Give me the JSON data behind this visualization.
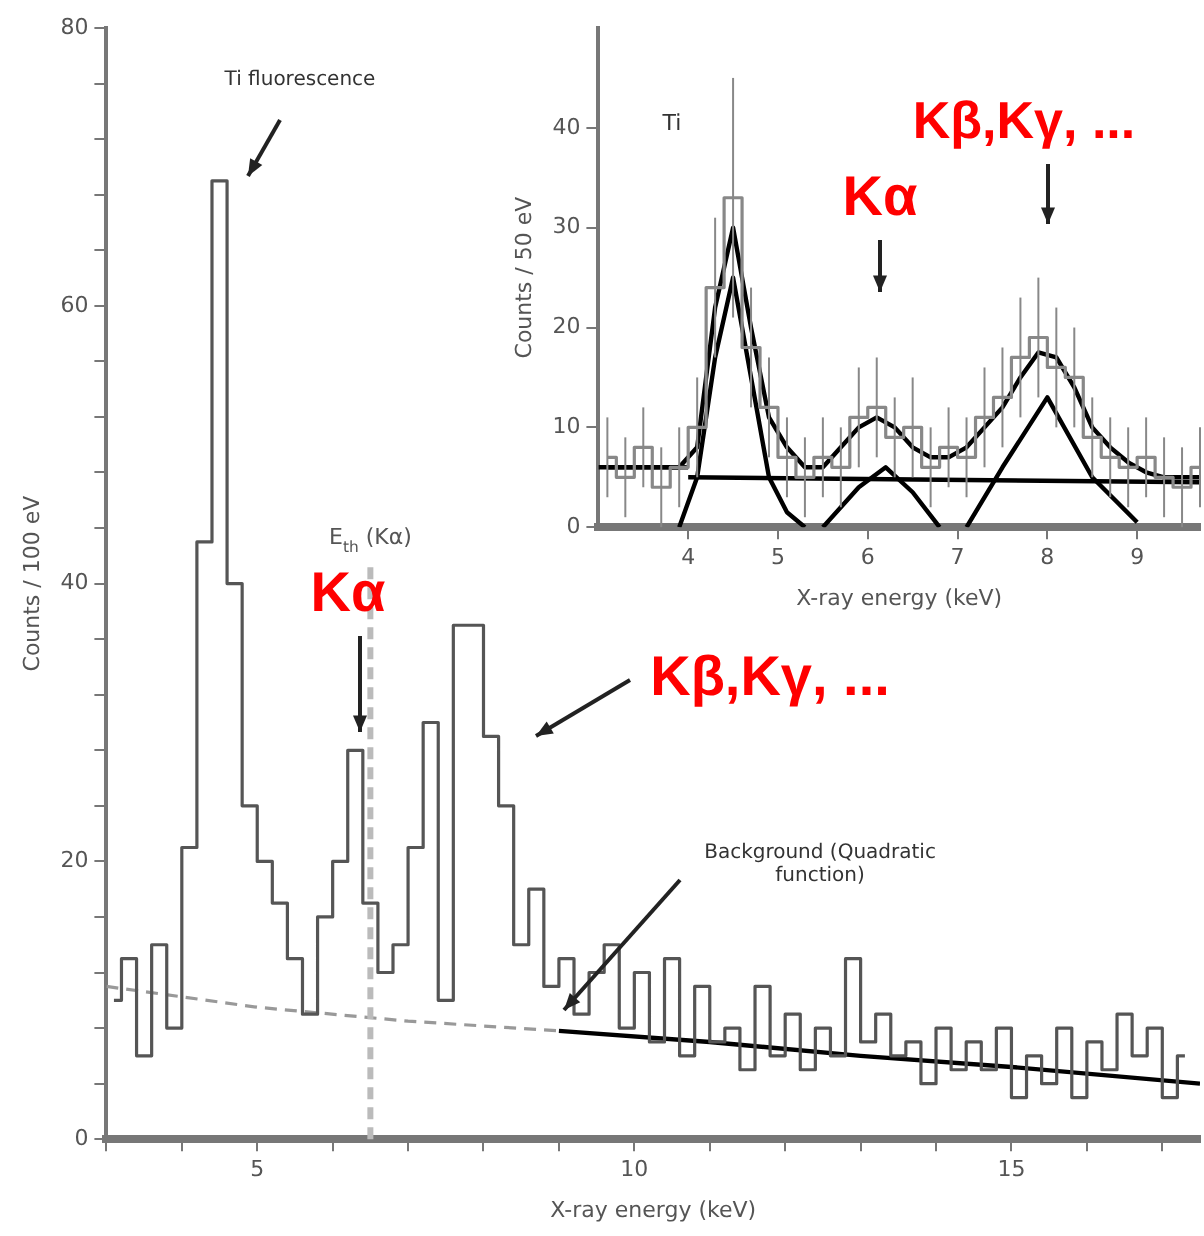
{
  "chart_data": [
    {
      "type": "step",
      "xlabel": "X-ray energy (keV)",
      "ylabel": "Counts / 100 eV",
      "xlim": [
        3,
        17.5
      ],
      "ylim": [
        0,
        80
      ],
      "xticks": [
        {
          "value": 3,
          "label": null
        },
        {
          "value": 4,
          "label": null
        },
        5,
        {
          "value": 6,
          "label": null
        },
        {
          "value": 7,
          "label": null
        },
        {
          "value": 8,
          "label": null
        },
        {
          "value": 9,
          "label": null
        },
        10,
        {
          "value": 11,
          "label": null
        },
        {
          "value": 12,
          "label": null
        },
        {
          "value": 13,
          "label": null
        },
        {
          "value": 14,
          "label": null
        },
        15,
        {
          "value": 16,
          "label": null
        },
        {
          "value": 17,
          "label": null
        }
      ],
      "yticks": [
        0,
        {
          "value": 4,
          "label": null
        },
        {
          "value": 8,
          "label": null
        },
        {
          "value": 12,
          "label": null
        },
        {
          "value": 16,
          "label": null
        },
        20,
        {
          "value": 24,
          "label": null
        },
        {
          "value": 28,
          "label": null
        },
        {
          "value": 32,
          "label": null
        },
        {
          "value": 36,
          "label": null
        },
        40,
        {
          "value": 44,
          "label": null
        },
        {
          "value": 48,
          "label": null
        },
        {
          "value": 52,
          "label": null
        },
        {
          "value": 56,
          "label": null
        },
        60,
        {
          "value": 64,
          "label": null
        },
        {
          "value": 68,
          "label": null
        },
        {
          "value": 72,
          "label": null
        },
        {
          "value": 76,
          "label": null
        },
        80
      ],
      "marker": "none",
      "series": [
        {
          "type": "step",
          "color": "#555555",
          "x": [
            3.1,
            3.3,
            3.5,
            3.7,
            3.9,
            4.1,
            4.3,
            4.5,
            4.7,
            4.9,
            5.1,
            5.3,
            5.5,
            5.7,
            5.9,
            6.1,
            6.3,
            6.5,
            6.7,
            6.9,
            7.1,
            7.3,
            7.5,
            7.7,
            7.9,
            8.1,
            8.3,
            8.5,
            8.7,
            8.9,
            9.1,
            9.3,
            9.5,
            9.7,
            9.9,
            10.1,
            10.3,
            10.5,
            10.7,
            10.9,
            11.1,
            11.3,
            11.5,
            11.7,
            11.9,
            12.1,
            12.3,
            12.5,
            12.7,
            12.9,
            13.1,
            13.3,
            13.5,
            13.7,
            13.9,
            14.1,
            14.3,
            14.5,
            14.7,
            14.9,
            15.1,
            15.3,
            15.5,
            15.7,
            15.9,
            16.1,
            16.3,
            16.5,
            16.7,
            16.9,
            17.1,
            17.3
          ],
          "values": [
            10,
            13,
            6,
            14,
            8,
            21,
            43,
            69,
            40,
            24,
            20,
            17,
            13,
            9,
            16,
            20,
            28,
            17,
            12,
            14,
            21,
            30,
            10,
            37,
            37,
            29,
            24,
            14,
            18,
            11,
            13,
            9,
            12,
            14,
            8,
            12,
            7,
            13,
            6,
            11,
            7,
            8,
            5,
            11,
            6,
            9,
            5,
            8,
            6,
            13,
            7,
            9,
            6,
            7,
            4,
            8,
            5,
            7,
            5,
            8,
            3,
            6,
            4,
            8,
            3,
            7,
            5,
            9,
            6,
            8,
            3,
            6
          ]
        },
        {
          "type": "line",
          "color": "#999999",
          "line_style": "dashed",
          "x": [
            3,
            5,
            7,
            9
          ],
          "values": [
            11,
            9.5,
            8.5,
            7.8
          ]
        },
        {
          "type": "line",
          "color": "#000000",
          "line_style": "solid",
          "x": [
            9,
            11,
            13,
            15,
            17.5
          ],
          "values": [
            7.8,
            7,
            6,
            5.2,
            4
          ]
        }
      ],
      "ref_lines": [
        {
          "axis": "x",
          "value": 6.5,
          "label": "E$_{th}$ (Kα)",
          "color": "#bbbbbb",
          "line_style": "dashed"
        }
      ],
      "annotations": [
        "Ti fluorescence",
        "Kα",
        "Kβ,Kγ, ...",
        "Background (Quadratic function)"
      ]
    },
    {
      "type": "step",
      "xlabel": "X-ray energy (keV)",
      "ylabel": "Counts / 50 eV",
      "xlim": [
        3,
        9.7
      ],
      "ylim": [
        0,
        50
      ],
      "xticks": [
        4,
        5,
        6,
        7,
        8,
        9
      ],
      "yticks": [
        0,
        10,
        20,
        30,
        40
      ],
      "marker": "none",
      "series": [
        {
          "type": "step",
          "color": "#888888",
          "x": [
            3.1,
            3.3,
            3.5,
            3.7,
            3.9,
            4.1,
            4.3,
            4.5,
            4.7,
            4.9,
            5.1,
            5.3,
            5.5,
            5.7,
            5.9,
            6.1,
            6.3,
            6.5,
            6.7,
            6.9,
            7.1,
            7.3,
            7.5,
            7.7,
            7.9,
            8.1,
            8.3,
            8.5,
            8.7,
            8.9,
            9.1,
            9.3,
            9.5,
            9.7
          ],
          "values": [
            7,
            5,
            8,
            4,
            6,
            10,
            24,
            33,
            18,
            12,
            7,
            5,
            7,
            6,
            11,
            12,
            9,
            10,
            6,
            8,
            7,
            11,
            13,
            17,
            19,
            16,
            15,
            9,
            7,
            6,
            7,
            5,
            4,
            6
          ],
          "errors": [
            4,
            4,
            4,
            4,
            4,
            5,
            7,
            12,
            6,
            5,
            4,
            4,
            4,
            4,
            5,
            5,
            4,
            5,
            4,
            4,
            4,
            5,
            5,
            6,
            6,
            6,
            5,
            4,
            4,
            4,
            4,
            4,
            4,
            4
          ]
        },
        {
          "type": "line",
          "color": "#000000",
          "x": [
            3.1,
            3.9,
            4.1,
            4.3,
            4.5,
            4.7,
            4.9,
            5.1,
            5.3,
            5.5,
            5.7,
            5.9,
            6.1,
            6.3,
            6.5,
            6.7,
            6.9,
            7.1,
            7.3,
            7.5,
            7.7,
            7.9,
            8.1,
            8.3,
            8.5,
            8.7,
            8.9,
            9.1,
            9.3,
            9.7
          ],
          "values": [
            6,
            6,
            8,
            22,
            30,
            20,
            11,
            8,
            6,
            6,
            8,
            10,
            11,
            10,
            8,
            7,
            7,
            8,
            10,
            12,
            15,
            17.5,
            17,
            14,
            10,
            8,
            6.5,
            5.5,
            5,
            5
          ]
        },
        {
          "type": "line",
          "color": "#000000",
          "x": [
            3.9,
            4.1,
            4.3,
            4.5,
            4.7,
            4.9,
            5.1,
            5.3
          ],
          "values": [
            0,
            5,
            17,
            25,
            15,
            5,
            1.5,
            0
          ]
        },
        {
          "type": "line",
          "color": "#000000",
          "x": [
            5.5,
            5.9,
            6.2,
            6.5,
            6.8
          ],
          "values": [
            0,
            4,
            6,
            3.5,
            0
          ]
        },
        {
          "type": "line",
          "color": "#000000",
          "x": [
            7.1,
            7.5,
            8,
            8.5,
            9
          ],
          "values": [
            0,
            6,
            13,
            5,
            0.5
          ]
        },
        {
          "type": "line",
          "color": "#000000",
          "x": [
            3,
            4
          ],
          "values": [
            6,
            6
          ]
        },
        {
          "type": "line",
          "color": "#000000",
          "x": [
            4,
            9.7
          ],
          "values": [
            5,
            4.5
          ]
        }
      ],
      "annotations": [
        "Ti",
        "Kα",
        "Kβ,Kγ, ..."
      ]
    }
  ]
}
